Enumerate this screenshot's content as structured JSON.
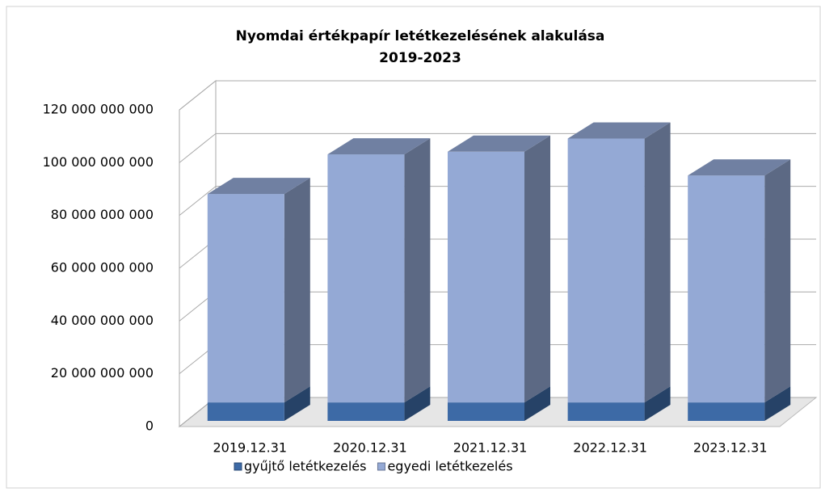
{
  "chart_data": {
    "type": "bar3d_stacked",
    "title": "Nyomdai értékpapír letétkezelésének alakulása",
    "subtitle": "2019-2023",
    "categories": [
      "2019.12.31",
      "2020.12.31",
      "2021.12.31",
      "2022.12.31",
      "2023.12.31"
    ],
    "series": [
      {
        "name": "gyűjtő letétkezelés",
        "color": "#3d6aa6",
        "values": [
          7000000000,
          7000000000,
          7000000000,
          7000000000,
          7000000000
        ]
      },
      {
        "name": "egyedi letétkezelés",
        "color": "#94a9d5",
        "values": [
          79000000000,
          94000000000,
          95000000000,
          100000000000,
          86000000000
        ]
      }
    ],
    "ylim": [
      0,
      120000000000
    ],
    "yticks": [
      {
        "value": 0,
        "label": "0"
      },
      {
        "value": 20000000000,
        "label": "20 000 000 000"
      },
      {
        "value": 40000000000,
        "label": "40 000 000 000"
      },
      {
        "value": 60000000000,
        "label": "60 000 000 000"
      },
      {
        "value": 80000000000,
        "label": "80 000 000 000"
      },
      {
        "value": 100000000000,
        "label": "100 000 000 000"
      },
      {
        "value": 120000000000,
        "label": "120 000 000 000"
      }
    ],
    "grid": true,
    "legend": "bottom"
  }
}
